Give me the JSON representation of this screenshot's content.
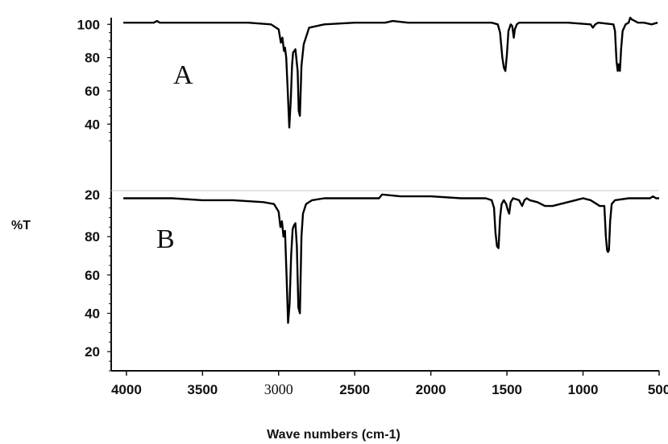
{
  "chart_data": {
    "type": "line",
    "xlabel": "Wave numbers (cm-1)",
    "ylabel": "%T",
    "x_reversed": true,
    "xlim": [
      4100,
      500
    ],
    "x_ticks": [
      {
        "value": 4000,
        "label": "4000"
      },
      {
        "value": 3500,
        "label": "3500"
      },
      {
        "value": 3000,
        "label": "3000"
      },
      {
        "value": 2500,
        "label": "2500"
      },
      {
        "value": 2000,
        "label": "2000"
      },
      {
        "value": 1500,
        "label": "1500"
      },
      {
        "value": 1000,
        "label": "1000"
      },
      {
        "value": 500,
        "label": "500"
      }
    ],
    "panels": [
      {
        "label": "A",
        "ylim": [
          30,
          104
        ],
        "y_ticks": [
          {
            "value": 100,
            "label": "100"
          },
          {
            "value": 80,
            "label": "80"
          },
          {
            "value": 60,
            "label": "60"
          },
          {
            "value": 40,
            "label": "40"
          }
        ],
        "series": [
          {
            "x": [
              4020,
              3900,
              3820,
              3800,
              3780,
              3600,
              3400,
              3200,
              3050,
              3000,
              2985,
              2975,
              2965,
              2958,
              2950,
              2940,
              2930,
              2920,
              2912,
              2905,
              2890,
              2875,
              2868,
              2860,
              2850,
              2835,
              2800,
              2700,
              2500,
              2300,
              2250,
              2150,
              2000,
              1800,
              1600,
              1560,
              1545,
              1530,
              1520,
              1510,
              1500,
              1490,
              1475,
              1465,
              1455,
              1448,
              1435,
              1420,
              1300,
              1100,
              950,
              935,
              920,
              900,
              800,
              790,
              780,
              772,
              765,
              758,
              750,
              740,
              720,
              700,
              690,
              680,
              660,
              640,
              600,
              550,
              510
            ],
            "y": [
              101,
              101,
              101,
              102,
              101,
              101,
              101,
              101,
              100,
              97,
              89,
              92,
              84,
              86,
              80,
              60,
              38,
              55,
              75,
              83,
              85,
              72,
              48,
              45,
              75,
              88,
              98,
              100,
              101,
              101,
              102,
              101,
              101,
              101,
              101,
              100,
              95,
              80,
              74,
              72,
              82,
              96,
              100,
              99,
              92,
              97,
              100,
              101,
              101,
              101,
              100,
              98,
              100,
              101,
              100,
              96,
              78,
              72,
              76,
              72,
              85,
              96,
              100,
              101,
              104,
              103,
              102,
              101,
              101,
              100,
              101
            ]
          }
        ]
      },
      {
        "label": "B",
        "ylim": [
          10,
          104
        ],
        "y_ticks": [
          {
            "value": 80,
            "label": "80"
          },
          {
            "value": 60,
            "label": "60"
          },
          {
            "value": 40,
            "label": "40"
          },
          {
            "value": 20,
            "label": "20"
          }
        ],
        "top_label": "20",
        "series": [
          {
            "x": [
              4020,
              3900,
              3700,
              3500,
              3300,
              3100,
              3030,
              3000,
              2988,
              2978,
              2968,
              2958,
              2948,
              2938,
              2928,
              2918,
              2908,
              2898,
              2890,
              2880,
              2870,
              2860,
              2850,
              2840,
              2820,
              2780,
              2700,
              2500,
              2340,
              2320,
              2200,
              2000,
              1800,
              1640,
              1600,
              1585,
              1575,
              1565,
              1555,
              1545,
              1535,
              1520,
              1505,
              1495,
              1485,
              1475,
              1460,
              1420,
              1400,
              1385,
              1370,
              1350,
              1300,
              1250,
              1200,
              1150,
              1100,
              1050,
              1000,
              950,
              930,
              910,
              890,
              870,
              860,
              850,
              842,
              836,
              830,
              822,
              812,
              790,
              700,
              600,
              560,
              540,
              520,
              500
            ],
            "y": [
              100,
              100,
              100,
              99,
              99,
              98,
              97,
              93,
              85,
              88,
              80,
              83,
              60,
              35,
              45,
              70,
              84,
              86,
              87,
              75,
              43,
              40,
              80,
              92,
              97,
              99,
              100,
              100,
              100,
              102,
              101,
              101,
              100,
              100,
              99,
              95,
              82,
              75,
              74,
              90,
              97,
              99,
              97,
              94,
              92,
              98,
              100,
              99,
              96,
              99,
              100,
              99,
              98,
              96,
              96,
              97,
              98,
              99,
              100,
              99,
              98,
              97,
              96,
              96,
              96,
              80,
              73,
              72,
              73,
              88,
              97,
              99,
              100,
              100,
              100,
              101,
              100,
              100
            ]
          }
        ]
      }
    ]
  }
}
